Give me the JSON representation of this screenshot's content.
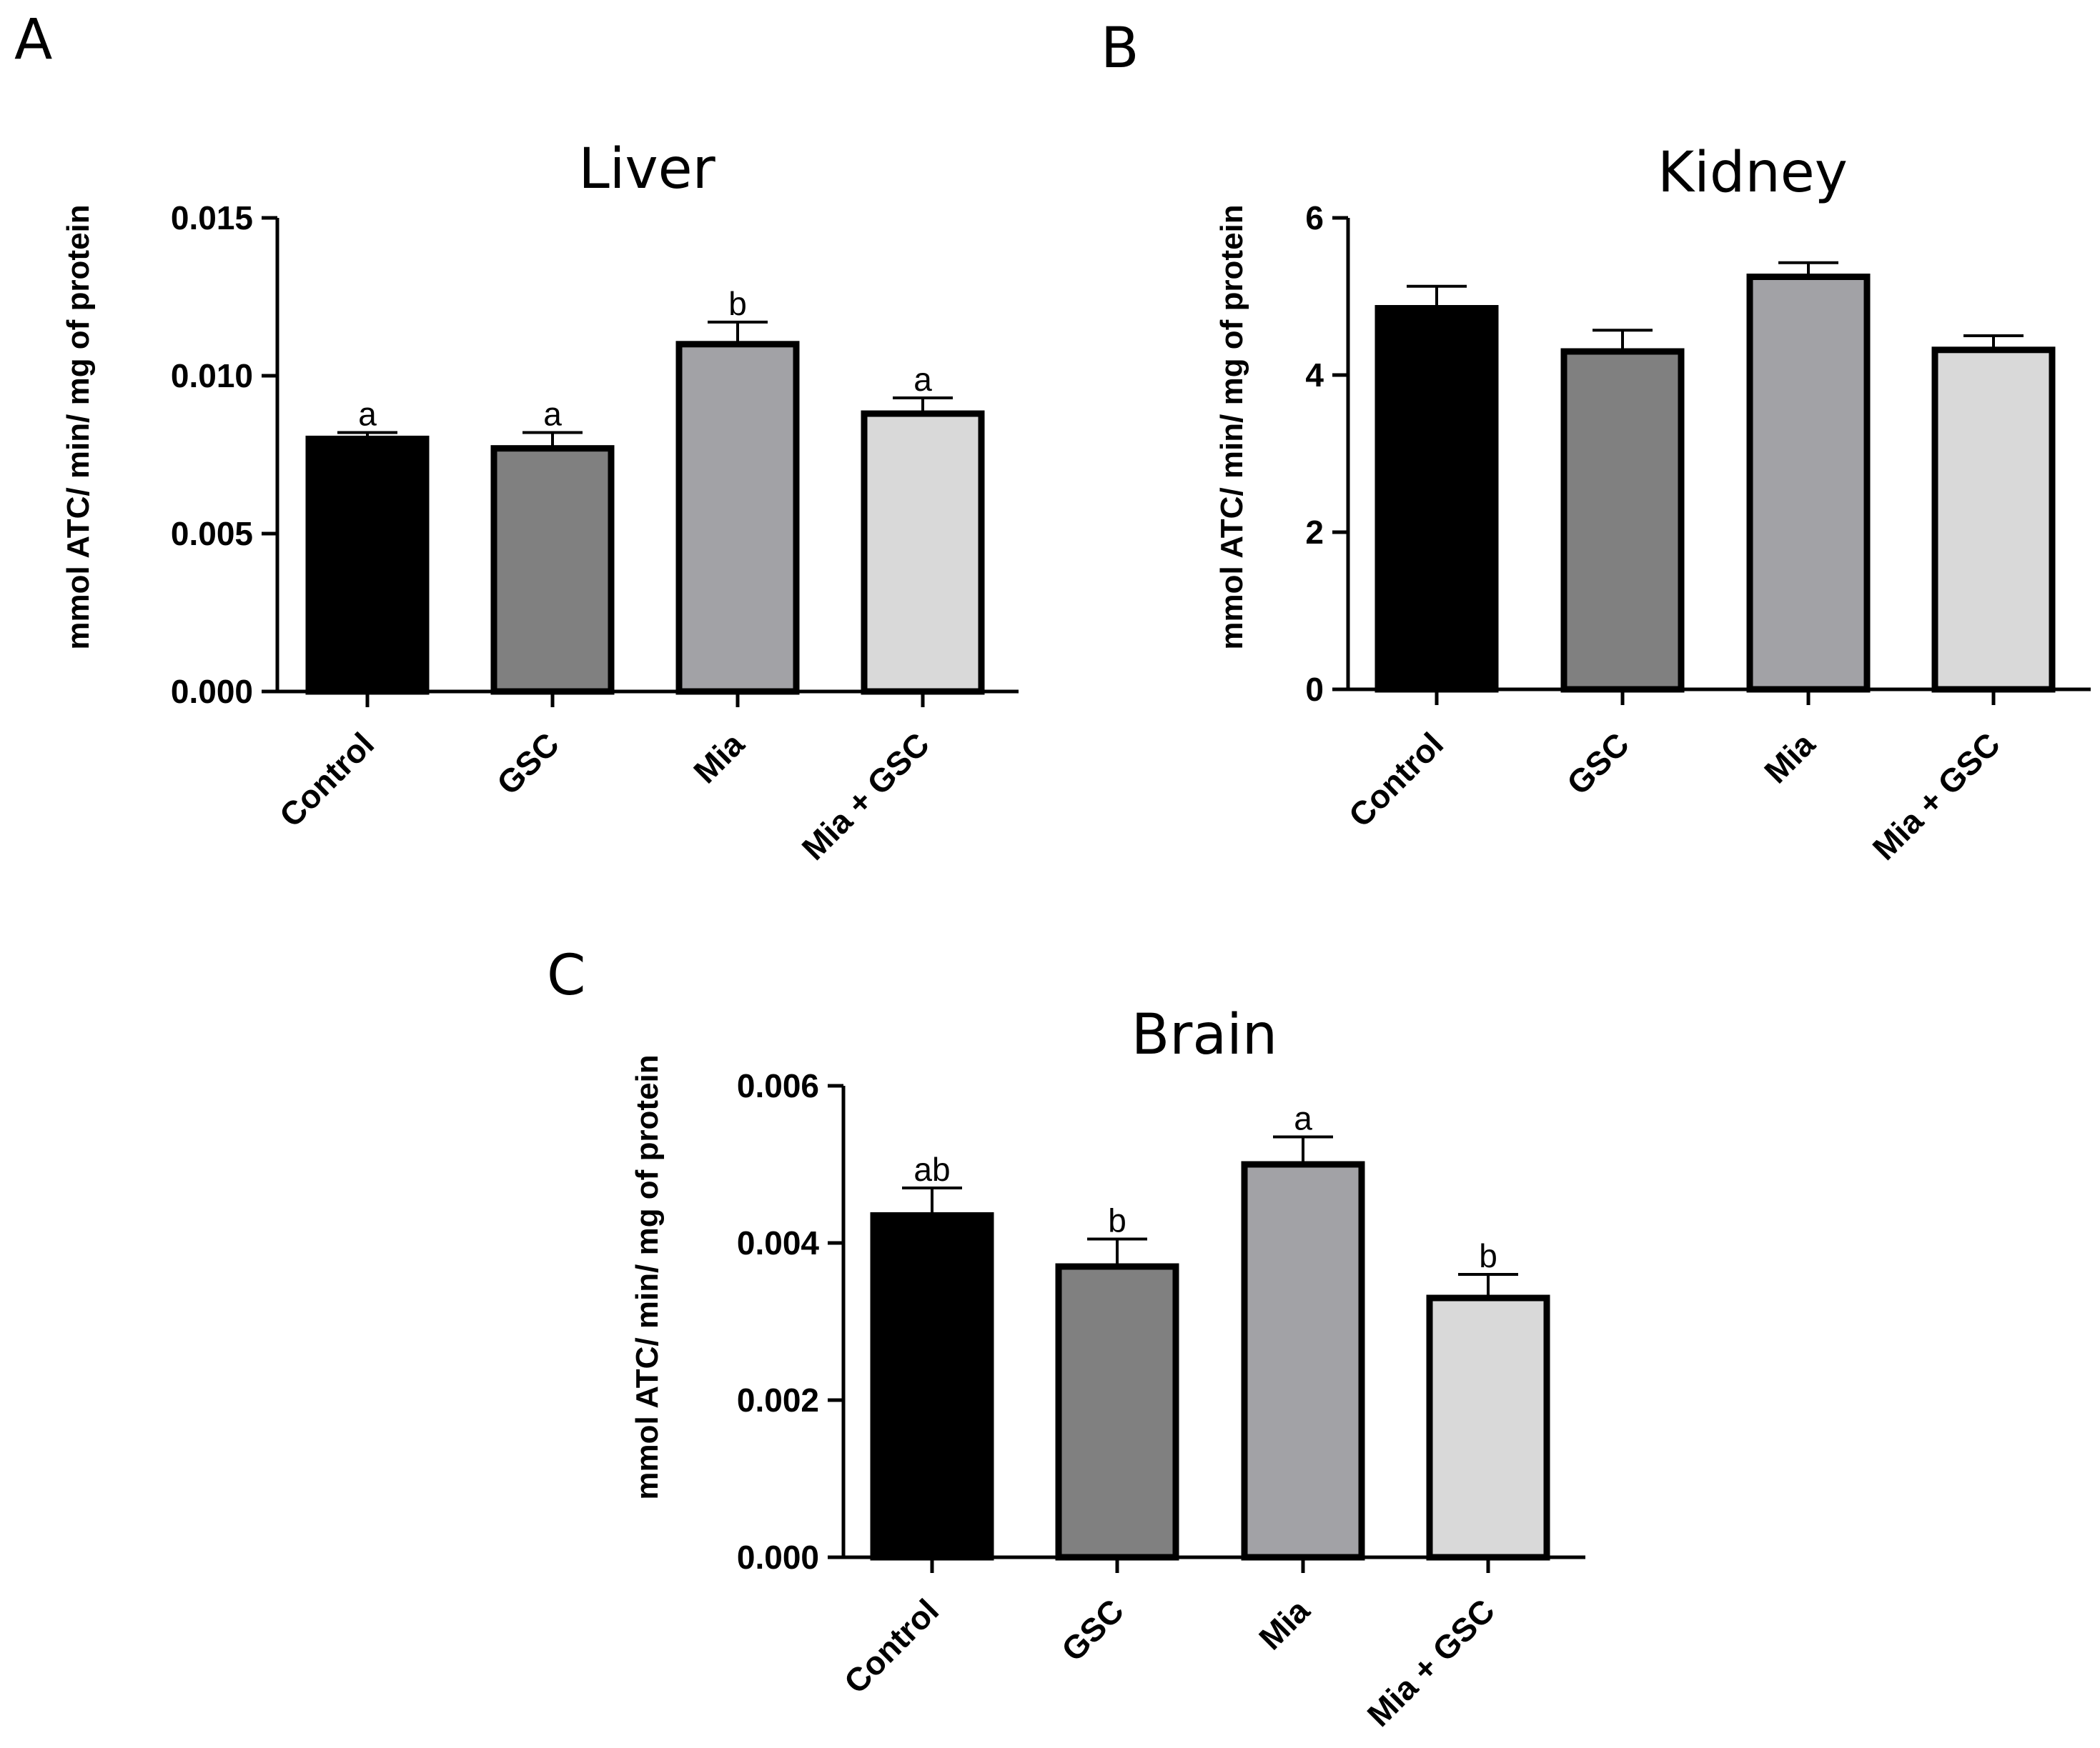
{
  "chart_data": [
    {
      "panel": "A",
      "type": "bar",
      "title": "Liver",
      "ylabel": "mmol ATC/ min/ mg of protein",
      "xlabel": "",
      "categories": [
        "Control",
        "GSC",
        "Mia",
        "Mia + GSC"
      ],
      "values": [
        0.008,
        0.0077,
        0.011,
        0.0088
      ],
      "errors": [
        0.0002,
        0.0005,
        0.0007,
        0.0005
      ],
      "sig_labels": [
        "a",
        "a",
        "b",
        "a"
      ],
      "ylim": [
        0,
        0.015
      ],
      "yticks": [
        0,
        0.005,
        0.01,
        0.015
      ],
      "ytick_labels": [
        "0.000",
        "0.005",
        "0.010",
        "0.015"
      ],
      "colors": [
        "#000000",
        "#808080",
        "#a2a2a6",
        "#d9d9d9"
      ]
    },
    {
      "panel": "B",
      "type": "bar",
      "title": "Kidney",
      "ylabel": "mmol ATC/ min/ mg of protein",
      "xlabel": "",
      "categories": [
        "Control",
        "GSC",
        "Mia",
        "Mia + GSC"
      ],
      "values": [
        4.85,
        4.3,
        5.25,
        4.32
      ],
      "errors": [
        0.28,
        0.27,
        0.18,
        0.18
      ],
      "sig_labels": [
        "",
        "",
        "",
        ""
      ],
      "ylim": [
        0,
        6
      ],
      "yticks": [
        0,
        2,
        4,
        6
      ],
      "ytick_labels": [
        "0",
        "2",
        "4",
        "6"
      ],
      "colors": [
        "#000000",
        "#808080",
        "#a2a2a6",
        "#d9d9d9"
      ]
    },
    {
      "panel": "C",
      "type": "bar",
      "title": "Brain",
      "ylabel": "mmol ATC/ min/ mg of protein",
      "xlabel": "",
      "categories": [
        "Control",
        "GSC",
        "Mia",
        "Mia + GSC"
      ],
      "values": [
        0.00435,
        0.0037,
        0.005,
        0.0033
      ],
      "errors": [
        0.00035,
        0.00035,
        0.00035,
        0.0003
      ],
      "sig_labels": [
        "ab",
        "b",
        "a",
        "b"
      ],
      "ylim": [
        0,
        0.006
      ],
      "yticks": [
        0,
        0.002,
        0.004,
        0.006
      ],
      "ytick_labels": [
        "0.000",
        "0.002",
        "0.004",
        "0.006"
      ],
      "colors": [
        "#000000",
        "#808080",
        "#a2a2a6",
        "#d9d9d9"
      ]
    }
  ]
}
